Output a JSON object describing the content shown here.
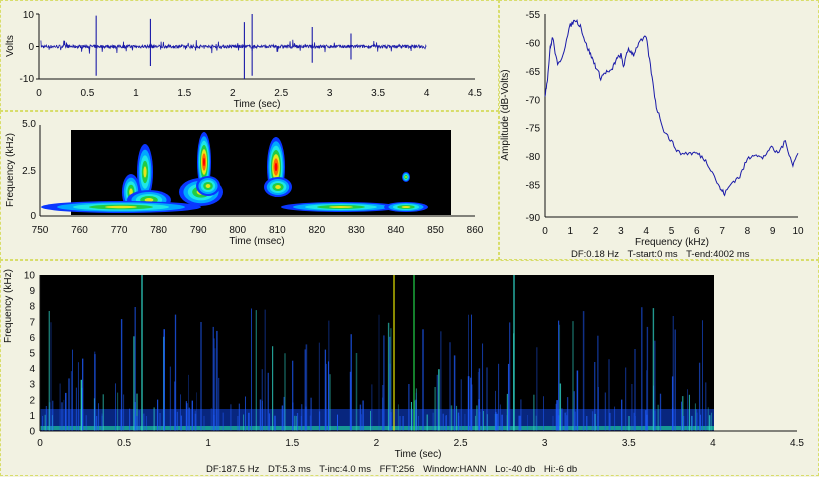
{
  "colors": {
    "background": "#f2f2e2",
    "panel_border": "#d8dd6a",
    "trace": "#1a1aa8",
    "map_background": "#000000"
  },
  "waveform": {
    "ylabel": "Volts",
    "xlabel": "Time (sec)",
    "y_ticks": [
      "10",
      "0",
      "-10"
    ],
    "x_ticks": [
      "0",
      "0.5",
      "1",
      "1.5",
      "2",
      "2.5",
      "3",
      "3.5",
      "4",
      "4.5"
    ]
  },
  "zoom_spectrogram": {
    "ylabel": "Frequency (kHz)",
    "xlabel": "Time (msec)",
    "y_ticks": [
      "5.0",
      "2.5",
      "0"
    ],
    "x_ticks": [
      "750",
      "760",
      "770",
      "780",
      "790",
      "800",
      "810",
      "820",
      "830",
      "840",
      "850",
      "860"
    ]
  },
  "spectrum": {
    "ylabel": "Amplitude (dB-Volts)",
    "xlabel": "Frequency (kHz)",
    "y_ticks": [
      "-55",
      "-60",
      "-65",
      "-70",
      "-75",
      "-80",
      "-85",
      "-90"
    ],
    "x_ticks": [
      "0",
      "1",
      "2",
      "3",
      "4",
      "5",
      "6",
      "7",
      "8",
      "9",
      "10"
    ],
    "info": {
      "df": "DF:0.18 Hz",
      "t_start": "T-start:0 ms",
      "t_end": "T-end:4002 ms"
    }
  },
  "main_spectrogram": {
    "ylabel": "Frequency (kHz)",
    "xlabel": "Time (sec)",
    "y_ticks": [
      "10",
      "9",
      "8",
      "7",
      "6",
      "5",
      "4",
      "3",
      "2",
      "1",
      "0"
    ],
    "x_ticks": [
      "0",
      "0.5",
      "1",
      "1.5",
      "2",
      "2.5",
      "3",
      "3.5",
      "4",
      "4.5"
    ],
    "info": {
      "df": "DF:187.5 Hz",
      "dt": "DT:5.3 ms",
      "t_inc": "T-inc:4.0 ms",
      "fft": "FFT:256",
      "window": "Window:HANN",
      "lo": "Lo:-40 db",
      "hi": "Hi:-6 db"
    }
  },
  "chart_data": [
    {
      "type": "line",
      "xlabel": "Time (sec)",
      "ylabel": "Volts",
      "xlim": [
        0,
        4.5
      ],
      "ylim": [
        -10,
        10
      ],
      "spikes": [
        {
          "x": 0.59,
          "y": 9.5
        },
        {
          "x": 0.59,
          "y": -9.0
        },
        {
          "x": 1.15,
          "y": 8.5
        },
        {
          "x": 1.15,
          "y": -6.0
        },
        {
          "x": 2.12,
          "y": 7.5
        },
        {
          "x": 2.12,
          "y": -10.0
        },
        {
          "x": 2.2,
          "y": 10.0
        },
        {
          "x": 2.2,
          "y": -9.0
        },
        {
          "x": 2.82,
          "y": 6.0
        },
        {
          "x": 2.82,
          "y": -5.0
        },
        {
          "x": 3.22,
          "y": 4.0
        },
        {
          "x": 3.22,
          "y": -4.0
        }
      ],
      "series": [
        {
          "values_note_free": true
        }
      ]
    },
    {
      "type": "heatmap",
      "xlabel": "Time (msec)",
      "ylabel": "Frequency (kHz)",
      "xlim": [
        750,
        860
      ],
      "ylim": [
        0,
        5
      ],
      "data_range_x": [
        757,
        854
      ]
    },
    {
      "type": "line",
      "xlabel": "Frequency (kHz)",
      "ylabel": "Amplitude (dB-Volts)",
      "xlim": [
        0,
        10
      ],
      "ylim": [
        -90,
        -55
      ],
      "x": [
        0,
        0.1,
        0.2,
        0.3,
        0.5,
        0.7,
        1.0,
        1.2,
        1.4,
        1.6,
        1.8,
        2.0,
        2.2,
        2.4,
        2.6,
        2.8,
        3.0,
        3.1,
        3.3,
        3.5,
        3.7,
        4.0,
        4.2,
        4.4,
        4.7,
        5.0,
        5.3,
        5.7,
        6.0,
        6.3,
        6.6,
        6.9,
        7.1,
        7.4,
        7.7,
        8.0,
        8.3,
        8.6,
        8.9,
        9.2,
        9.5,
        9.8,
        10.0
      ],
      "y": [
        -69,
        -66,
        -61,
        -59,
        -64,
        -62,
        -57,
        -56,
        -57,
        -60,
        -62,
        -64,
        -66,
        -65,
        -65,
        -63,
        -62,
        -64,
        -61,
        -62,
        -60,
        -59,
        -65,
        -71,
        -75,
        -77,
        -79,
        -79,
        -79,
        -80,
        -82,
        -85,
        -86,
        -84,
        -83,
        -80,
        -79,
        -80,
        -78,
        -79,
        -77,
        -81,
        -79
      ]
    },
    {
      "type": "heatmap",
      "xlabel": "Time (sec)",
      "ylabel": "Frequency (kHz)",
      "xlim": [
        0,
        4.5
      ],
      "ylim": [
        0,
        10
      ],
      "data_range_x": [
        0,
        4.0
      ]
    }
  ]
}
